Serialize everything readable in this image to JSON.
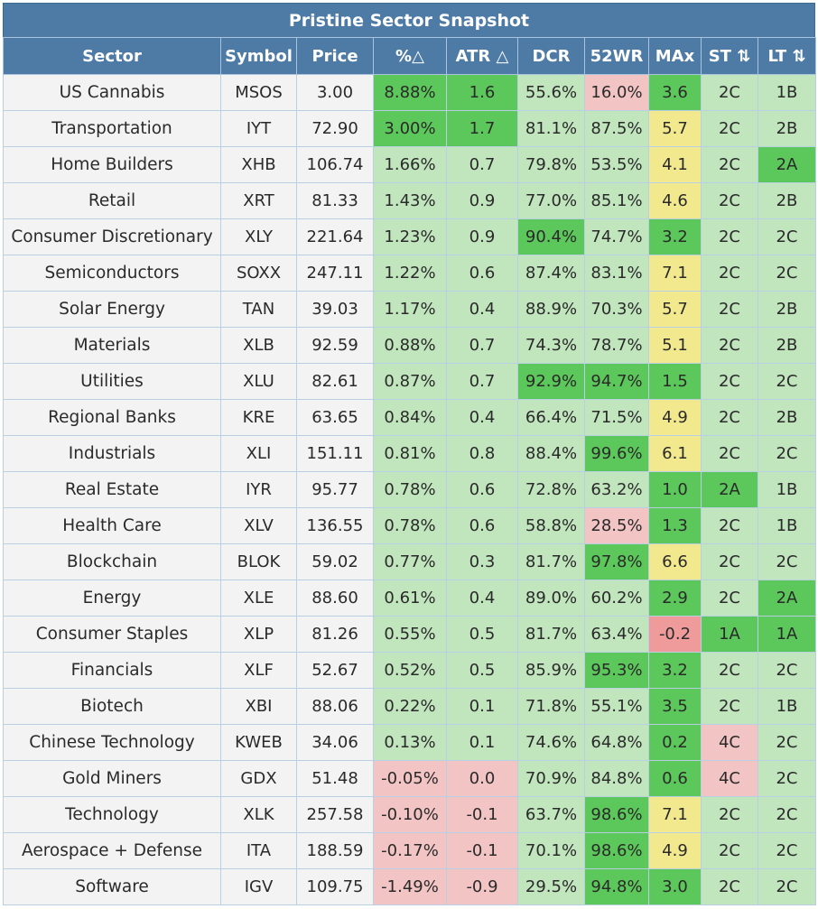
{
  "title": "Pristine Sector Snapshot",
  "columns": [
    "Sector",
    "Symbol",
    "Price",
    "%△",
    "ATR △",
    "DCR",
    "52WR",
    "MAx",
    "ST ⇅",
    "LT ⇅"
  ],
  "colors": {
    "header": "#4d7ba6",
    "plain": "#f3f3f3",
    "green": "#c1e5bd",
    "strong": "#5cc75a",
    "red": "#f2c4c4",
    "yellow": "#f2e98e",
    "salmon": "#ef9b9b"
  },
  "rows": [
    {
      "cells": [
        "US Cannabis",
        "MSOS",
        "3.00",
        "8.88%",
        "1.6",
        "55.6%",
        "16.0%",
        "3.6",
        "2C",
        "1B"
      ],
      "tone": [
        "plain",
        "plain",
        "plain",
        "strong",
        "strong",
        "green",
        "red",
        "strong",
        "green",
        "green"
      ]
    },
    {
      "cells": [
        "Transportation",
        "IYT",
        "72.90",
        "3.00%",
        "1.7",
        "81.1%",
        "87.5%",
        "5.7",
        "2C",
        "2B"
      ],
      "tone": [
        "plain",
        "plain",
        "plain",
        "strong",
        "strong",
        "green",
        "green",
        "yellow",
        "green",
        "green"
      ]
    },
    {
      "cells": [
        "Home Builders",
        "XHB",
        "106.74",
        "1.66%",
        "0.7",
        "79.8%",
        "53.5%",
        "4.1",
        "2C",
        "2A"
      ],
      "tone": [
        "plain",
        "plain",
        "plain",
        "green",
        "green",
        "green",
        "green",
        "yellow",
        "green",
        "strong"
      ]
    },
    {
      "cells": [
        "Retail",
        "XRT",
        "81.33",
        "1.43%",
        "0.9",
        "77.0%",
        "85.1%",
        "4.6",
        "2C",
        "2B"
      ],
      "tone": [
        "plain",
        "plain",
        "plain",
        "green",
        "green",
        "green",
        "green",
        "yellow",
        "green",
        "green"
      ]
    },
    {
      "cells": [
        "Consumer Discretionary",
        "XLY",
        "221.64",
        "1.23%",
        "0.9",
        "90.4%",
        "74.7%",
        "3.2",
        "2C",
        "2C"
      ],
      "tone": [
        "plain",
        "plain",
        "plain",
        "green",
        "green",
        "strong",
        "green",
        "strong",
        "green",
        "green"
      ]
    },
    {
      "cells": [
        "Semiconductors",
        "SOXX",
        "247.11",
        "1.22%",
        "0.6",
        "87.4%",
        "83.1%",
        "7.1",
        "2C",
        "2C"
      ],
      "tone": [
        "plain",
        "plain",
        "plain",
        "green",
        "green",
        "green",
        "green",
        "yellow",
        "green",
        "green"
      ]
    },
    {
      "cells": [
        "Solar Energy",
        "TAN",
        "39.03",
        "1.17%",
        "0.4",
        "88.9%",
        "70.3%",
        "5.7",
        "2C",
        "2B"
      ],
      "tone": [
        "plain",
        "plain",
        "plain",
        "green",
        "green",
        "green",
        "green",
        "yellow",
        "green",
        "green"
      ]
    },
    {
      "cells": [
        "Materials",
        "XLB",
        "92.59",
        "0.88%",
        "0.7",
        "74.3%",
        "78.7%",
        "5.1",
        "2C",
        "2B"
      ],
      "tone": [
        "plain",
        "plain",
        "plain",
        "green",
        "green",
        "green",
        "green",
        "yellow",
        "green",
        "green"
      ]
    },
    {
      "cells": [
        "Utilities",
        "XLU",
        "82.61",
        "0.87%",
        "0.7",
        "92.9%",
        "94.7%",
        "1.5",
        "2C",
        "2C"
      ],
      "tone": [
        "plain",
        "plain",
        "plain",
        "green",
        "green",
        "strong",
        "strong",
        "strong",
        "green",
        "green"
      ]
    },
    {
      "cells": [
        "Regional Banks",
        "KRE",
        "63.65",
        "0.84%",
        "0.4",
        "66.4%",
        "71.5%",
        "4.9",
        "2C",
        "2B"
      ],
      "tone": [
        "plain",
        "plain",
        "plain",
        "green",
        "green",
        "green",
        "green",
        "yellow",
        "green",
        "green"
      ]
    },
    {
      "cells": [
        "Industrials",
        "XLI",
        "151.11",
        "0.81%",
        "0.8",
        "88.4%",
        "99.6%",
        "6.1",
        "2C",
        "2C"
      ],
      "tone": [
        "plain",
        "plain",
        "plain",
        "green",
        "green",
        "green",
        "strong",
        "yellow",
        "green",
        "green"
      ]
    },
    {
      "cells": [
        "Real Estate",
        "IYR",
        "95.77",
        "0.78%",
        "0.6",
        "72.8%",
        "63.2%",
        "1.0",
        "2A",
        "1B"
      ],
      "tone": [
        "plain",
        "plain",
        "plain",
        "green",
        "green",
        "green",
        "green",
        "strong",
        "strong",
        "green"
      ]
    },
    {
      "cells": [
        "Health Care",
        "XLV",
        "136.55",
        "0.78%",
        "0.6",
        "58.8%",
        "28.5%",
        "1.3",
        "2C",
        "1B"
      ],
      "tone": [
        "plain",
        "plain",
        "plain",
        "green",
        "green",
        "green",
        "red",
        "strong",
        "green",
        "green"
      ]
    },
    {
      "cells": [
        "Blockchain",
        "BLOK",
        "59.02",
        "0.77%",
        "0.3",
        "81.7%",
        "97.8%",
        "6.6",
        "2C",
        "2C"
      ],
      "tone": [
        "plain",
        "plain",
        "plain",
        "green",
        "green",
        "green",
        "strong",
        "yellow",
        "green",
        "green"
      ]
    },
    {
      "cells": [
        "Energy",
        "XLE",
        "88.60",
        "0.61%",
        "0.4",
        "89.0%",
        "60.2%",
        "2.9",
        "2C",
        "2A"
      ],
      "tone": [
        "plain",
        "plain",
        "plain",
        "green",
        "green",
        "green",
        "green",
        "strong",
        "green",
        "strong"
      ]
    },
    {
      "cells": [
        "Consumer Staples",
        "XLP",
        "81.26",
        "0.55%",
        "0.5",
        "81.7%",
        "63.4%",
        "-0.2",
        "1A",
        "1A"
      ],
      "tone": [
        "plain",
        "plain",
        "plain",
        "green",
        "green",
        "green",
        "green",
        "salmon",
        "strong",
        "strong"
      ]
    },
    {
      "cells": [
        "Financials",
        "XLF",
        "52.67",
        "0.52%",
        "0.5",
        "85.9%",
        "95.3%",
        "3.2",
        "2C",
        "2C"
      ],
      "tone": [
        "plain",
        "plain",
        "plain",
        "green",
        "green",
        "green",
        "strong",
        "strong",
        "green",
        "green"
      ]
    },
    {
      "cells": [
        "Biotech",
        "XBI",
        "88.06",
        "0.22%",
        "0.1",
        "71.8%",
        "55.1%",
        "3.5",
        "2C",
        "1B"
      ],
      "tone": [
        "plain",
        "plain",
        "plain",
        "green",
        "green",
        "green",
        "green",
        "strong",
        "green",
        "green"
      ]
    },
    {
      "cells": [
        "Chinese Technology",
        "KWEB",
        "34.06",
        "0.13%",
        "0.1",
        "74.6%",
        "64.8%",
        "0.2",
        "4C",
        "2C"
      ],
      "tone": [
        "plain",
        "plain",
        "plain",
        "green",
        "green",
        "green",
        "green",
        "strong",
        "red",
        "green"
      ]
    },
    {
      "cells": [
        "Gold Miners",
        "GDX",
        "51.48",
        "-0.05%",
        "0.0",
        "70.9%",
        "84.8%",
        "0.6",
        "4C",
        "2C"
      ],
      "tone": [
        "plain",
        "plain",
        "plain",
        "red",
        "red",
        "green",
        "green",
        "strong",
        "red",
        "green"
      ]
    },
    {
      "cells": [
        "Technology",
        "XLK",
        "257.58",
        "-0.10%",
        "-0.1",
        "63.7%",
        "98.6%",
        "7.1",
        "2C",
        "2C"
      ],
      "tone": [
        "plain",
        "plain",
        "plain",
        "red",
        "red",
        "green",
        "strong",
        "yellow",
        "green",
        "green"
      ]
    },
    {
      "cells": [
        "Aerospace + Defense",
        "ITA",
        "188.59",
        "-0.17%",
        "-0.1",
        "70.1%",
        "98.6%",
        "4.9",
        "2C",
        "2C"
      ],
      "tone": [
        "plain",
        "plain",
        "plain",
        "red",
        "red",
        "green",
        "strong",
        "yellow",
        "green",
        "green"
      ]
    },
    {
      "cells": [
        "Software",
        "IGV",
        "109.75",
        "-1.49%",
        "-0.9",
        "29.5%",
        "94.8%",
        "3.0",
        "2C",
        "2C"
      ],
      "tone": [
        "plain",
        "plain",
        "plain",
        "red",
        "red",
        "green",
        "strong",
        "strong",
        "green",
        "green"
      ]
    }
  ]
}
